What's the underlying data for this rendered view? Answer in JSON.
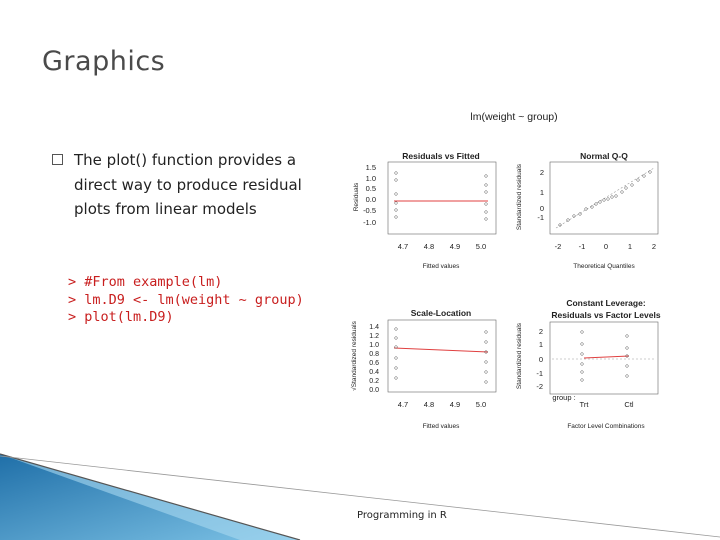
{
  "slide": {
    "title": "Graphics",
    "bullet": "The plot() function provides a direct way to produce residual plots from linear models",
    "code": [
      "> #From example(lm)",
      "> lm.D9 <- lm(weight ~ group)",
      "> plot(lm.D9)"
    ],
    "footer": "Programming in R"
  },
  "figure": {
    "main_title": "lm(weight ~ group)",
    "panels": [
      {
        "title": "Residuals vs Fitted",
        "xlabel": "Fitted values",
        "ylabel": "Residuals",
        "xticks": [
          "4.7",
          "4.8",
          "4.9",
          "5.0"
        ],
        "yticks": [
          "1.5",
          "1.0",
          "0.5",
          "0.0",
          "-0.5",
          "-1.0"
        ]
      },
      {
        "title": "Normal Q-Q",
        "xlabel": "Theoretical Quantiles",
        "ylabel": "Standardized residuals",
        "xticks": [
          "-2",
          "-1",
          "0",
          "1",
          "2"
        ],
        "yticks": [
          "2",
          "1",
          "0",
          "-1"
        ]
      },
      {
        "title": "Scale-Location",
        "xlabel": "Fitted values",
        "ylabel": "√Standardized residuals",
        "xticks": [
          "4.7",
          "4.8",
          "4.9",
          "5.0"
        ],
        "yticks": [
          "1.4",
          "1.2",
          "1.0",
          "0.8",
          "0.6",
          "0.4",
          "0.2",
          "0.0"
        ]
      },
      {
        "title": "Constant Leverage:",
        "title2": "Residuals vs Factor Levels",
        "xlabel": "Factor Level Combinations",
        "ylabel": "Standardized residuals",
        "xticks": [
          "Trt",
          "Ctl"
        ],
        "yticks": [
          "2",
          "1",
          "0",
          "-1",
          "-2"
        ],
        "group_label": "group :"
      }
    ]
  },
  "colors": {
    "title": "#4a4a4a",
    "code": "#c81e1e",
    "fit_line": "#e04040",
    "deco_blue": "#2e86c1"
  }
}
